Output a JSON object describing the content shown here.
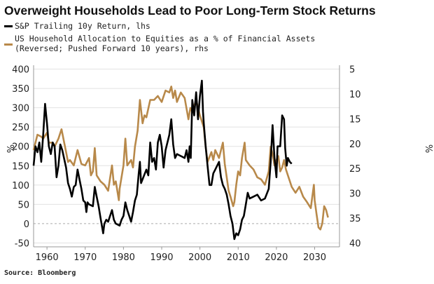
{
  "chart_data": {
    "type": "line",
    "title": "Overweight Households Lead to Poor Long-Term Stock Returns",
    "source": "Source: Bloomberg",
    "grid": true,
    "legend_position": "top-left",
    "x_ticks": [
      "1960",
      "1970",
      "1980",
      "1990",
      "2000",
      "2010",
      "2020",
      "2030"
    ],
    "xlim": [
      1956.5,
      2036.5
    ],
    "y_left": {
      "unit": "%",
      "ylim": [
        -60,
        410
      ],
      "ticks": [
        "400",
        "350",
        "300",
        "250",
        "200",
        "150",
        "100",
        "50",
        "0",
        "-50"
      ]
    },
    "y_right": {
      "unit": "%",
      "reversed": true,
      "ylim": [
        4.2,
        40.8
      ],
      "ticks": [
        "5",
        "10",
        "15",
        "20",
        "25",
        "30",
        "35",
        "40"
      ]
    },
    "series": [
      {
        "name": "S&P Trailing 10y Return, lhs",
        "axis": "left",
        "color": "#000000",
        "x": [
          1956.5,
          1957,
          1957.5,
          1958,
          1958.5,
          1959,
          1959.5,
          1960,
          1960.5,
          1961,
          1961.5,
          1962,
          1962.5,
          1963,
          1963.5,
          1964,
          1965,
          1965.5,
          1966,
          1966.5,
          1967,
          1967.5,
          1968,
          1968.5,
          1969,
          1969.5,
          1970,
          1970.3,
          1970.6,
          1971,
          1972,
          1972.5,
          1973,
          1973.5,
          1974,
          1974.7,
          1975,
          1975.5,
          1976,
          1977,
          1977.5,
          1978,
          1979,
          1979.5,
          1980,
          1980.5,
          1981,
          1981.5,
          1982,
          1982.5,
          1983,
          1983.5,
          1984,
          1984.3,
          1984.6,
          1985,
          1986,
          1986.5,
          1987,
          1987.5,
          1988,
          1988.5,
          1989,
          1989.5,
          1990,
          1990.5,
          1991,
          1992,
          1992.5,
          1993,
          1993.5,
          1994,
          1995,
          1996,
          1996.5,
          1997,
          1997.3,
          1997.6,
          1998,
          1998.5,
          1999,
          1999.5,
          2000,
          2000.5,
          2000.8,
          2001,
          2001.5,
          2002,
          2002.5,
          2003,
          2003.5,
          2004,
          2005,
          2005.5,
          2006,
          2006.5,
          2007,
          2007.5,
          2008,
          2008.5,
          2009,
          2009.5,
          2010,
          2010.5,
          2011,
          2011.5,
          2012,
          2012.5,
          2013,
          2014,
          2015,
          2016,
          2017,
          2018,
          2018.5,
          2019,
          2019.5,
          2020,
          2020.3,
          2021,
          2021.5,
          2022,
          2022.3,
          2022.7,
          2023,
          2023.5,
          2024
        ],
        "y": [
          150,
          200,
          185,
          210,
          160,
          230,
          310,
          260,
          200,
          180,
          210,
          200,
          120,
          150,
          205,
          190,
          145,
          105,
          90,
          70,
          95,
          100,
          140,
          115,
          90,
          60,
          55,
          30,
          55,
          50,
          45,
          95,
          70,
          45,
          15,
          -25,
          0,
          10,
          5,
          35,
          10,
          0,
          -5,
          10,
          20,
          55,
          35,
          20,
          5,
          30,
          60,
          75,
          130,
          160,
          105,
          115,
          140,
          125,
          210,
          160,
          170,
          140,
          210,
          230,
          200,
          145,
          190,
          230,
          270,
          205,
          170,
          180,
          175,
          170,
          190,
          160,
          200,
          170,
          320,
          280,
          340,
          270,
          330,
          370,
          290,
          260,
          200,
          150,
          100,
          100,
          130,
          140,
          160,
          120,
          100,
          90,
          75,
          50,
          20,
          0,
          -40,
          -25,
          -30,
          -15,
          10,
          20,
          50,
          80,
          65,
          70,
          75,
          60,
          65,
          90,
          160,
          255,
          170,
          120,
          200,
          200,
          280,
          270,
          195,
          150,
          170,
          160,
          155
        ]
      },
      {
        "name": "US Household Allocation to Equities as a % of Financial Assets (Reversed; Pushed Forward 10 years), rhs",
        "axis": "right",
        "color": "#b8894a",
        "x": [
          1956.5,
          1957.5,
          1958.5,
          1959,
          1960,
          1960.5,
          1961.5,
          1962,
          1963,
          1963.8,
          1964.5,
          1965,
          1965.5,
          1966,
          1967,
          1968,
          1969,
          1970,
          1971,
          1971.5,
          1972,
          1972.5,
          1973,
          1974,
          1975,
          1976,
          1977,
          1977.5,
          1978,
          1978.8,
          1979,
          1980,
          1980.5,
          1981,
          1982,
          1982.5,
          1983,
          1983.7,
          1984.3,
          1985,
          1985.5,
          1986,
          1987,
          1988,
          1989,
          1990,
          1991,
          1992,
          1992.5,
          1993,
          1993.5,
          1994,
          1995,
          1996,
          1997,
          1997.5,
          1998,
          1999,
          2000,
          2001,
          2001.5,
          2002,
          2003,
          2003.5,
          2004,
          2005,
          2006,
          2006.5,
          2007,
          2007.5,
          2008,
          2008.7,
          2009,
          2009.5,
          2010,
          2010.5,
          2011,
          2011.7,
          2012,
          2013,
          2014,
          2015,
          2016,
          2017,
          2018,
          2018.5,
          2019,
          2019.5,
          2020,
          2020.5,
          2021,
          2021.5,
          2022,
          2022.5,
          2023,
          2024,
          2025,
          2026,
          2027,
          2028,
          2029,
          2029.8,
          2030,
          2030.5,
          2031,
          2031.5,
          2032,
          2032.5,
          2033,
          2033.5
        ],
        "y": [
          21.3,
          18.2,
          18.6,
          19.0,
          17.8,
          19.8,
          19.8,
          20.6,
          19.0,
          17.1,
          19.8,
          21.7,
          23.7,
          23.3,
          24.4,
          21.3,
          24.1,
          24.4,
          22.9,
          26.4,
          25.6,
          20.9,
          26.4,
          27.6,
          28.3,
          29.5,
          24.4,
          28.3,
          27.6,
          31.4,
          29.1,
          24.4,
          19.0,
          24.4,
          23.3,
          24.8,
          20.6,
          17.4,
          11.2,
          15.9,
          14.3,
          14.7,
          11.2,
          11.2,
          10.4,
          11.6,
          9.3,
          9.7,
          8.5,
          10.8,
          9.3,
          11.6,
          9.7,
          10.8,
          15.1,
          12.8,
          13.6,
          11.2,
          14.3,
          16.7,
          20.6,
          23.7,
          21.7,
          23.3,
          21.3,
          22.9,
          19.8,
          24.1,
          26.8,
          29.5,
          30.7,
          32.6,
          31.8,
          28.3,
          25.6,
          26.4,
          22.9,
          19.8,
          23.3,
          24.4,
          25.2,
          26.8,
          27.2,
          28.3,
          25.6,
          20.6,
          22.1,
          24.4,
          23.3,
          22.5,
          25.6,
          24.8,
          23.3,
          25.2,
          26.4,
          28.7,
          29.9,
          28.7,
          30.7,
          31.8,
          33.0,
          28.3,
          31.4,
          34.2,
          36.9,
          37.3,
          36.1,
          32.6,
          33.4,
          34.9
        ]
      }
    ]
  }
}
